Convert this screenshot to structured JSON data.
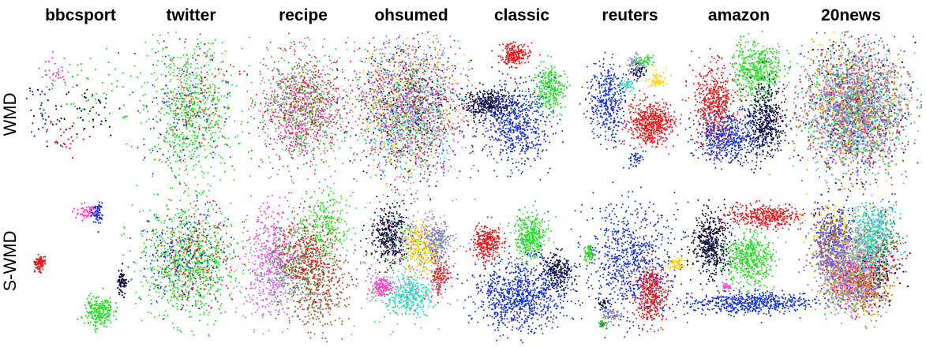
{
  "figure": {
    "columns": [
      {
        "key": "bbcsport",
        "title": "bbcsport",
        "n_classes": 5
      },
      {
        "key": "twitter",
        "title": "twitter",
        "n_classes": 3
      },
      {
        "key": "recipe",
        "title": "recipe",
        "n_classes": 6
      },
      {
        "key": "ohsumed",
        "title": "ohsumed",
        "n_classes": 10
      },
      {
        "key": "classic",
        "title": "classic",
        "n_classes": 4
      },
      {
        "key": "reuters",
        "title": "reuters",
        "n_classes": 8
      },
      {
        "key": "amazon",
        "title": "amazon",
        "n_classes": 4
      },
      {
        "key": "20news",
        "title": "20news",
        "n_classes": 20
      }
    ],
    "rows": [
      {
        "key": "wmd",
        "label": "WMD"
      },
      {
        "key": "swmd",
        "label": "S-WMD"
      }
    ],
    "palette": [
      "#e41a1c",
      "#22e022",
      "#1430d8",
      "#0b0b3a",
      "#ff40c0",
      "#ffd000",
      "#8080c0",
      "#1ee0c0",
      "#a05030",
      "#d070ff",
      "#30a030",
      "#808080",
      "#ff9060",
      "#60c0ff",
      "#c03060",
      "#9070c0",
      "#40e0a0",
      "#e0a000",
      "#6060ff",
      "#b0b0b0"
    ],
    "chart_type": "scatter"
  }
}
